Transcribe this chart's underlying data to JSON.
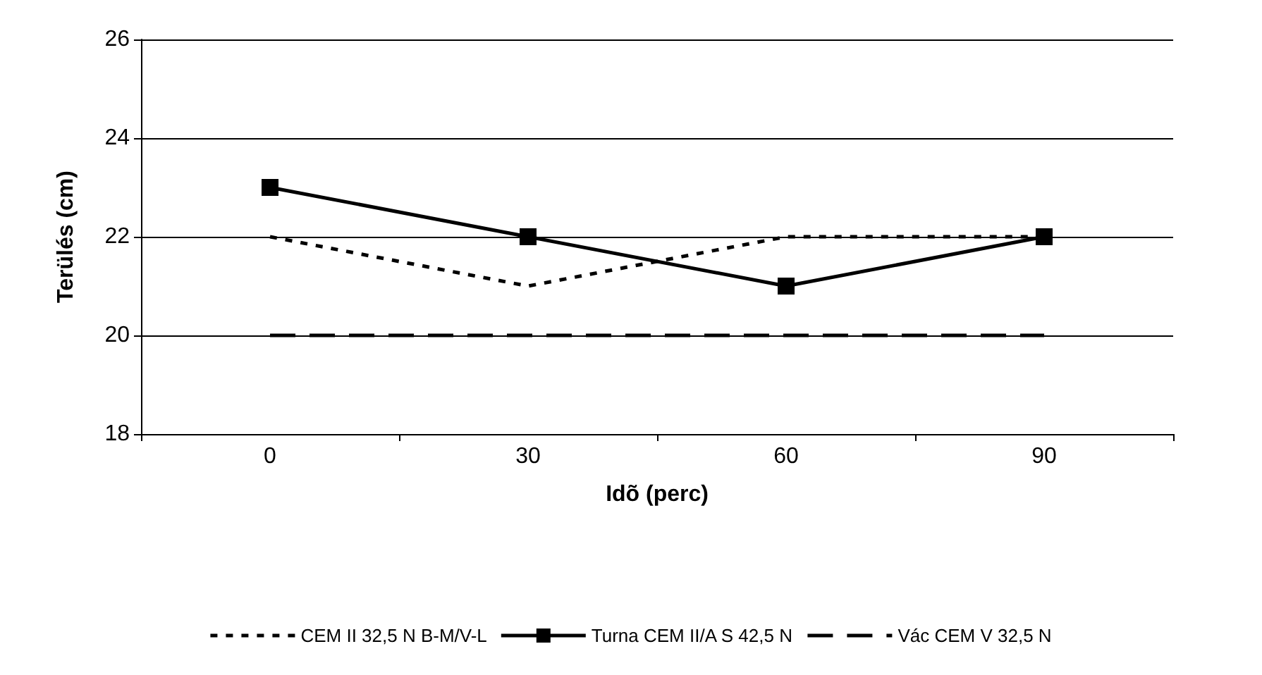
{
  "chart_data": {
    "type": "line",
    "xlabel": "Idõ (perc)",
    "ylabel": "Terülés (cm)",
    "categories": [
      "0",
      "30",
      "60",
      "90"
    ],
    "ylim": [
      18,
      26
    ],
    "yticks": [
      18,
      20,
      22,
      24,
      26
    ],
    "grid": "y",
    "legend": "bottom",
    "series": [
      {
        "name": "CEM II 32,5 N B-M/V-L",
        "color": "#000000",
        "values": [
          22,
          21,
          22,
          22
        ],
        "line_style": "dotted",
        "marker": "none"
      },
      {
        "name": "Turna CEM II/A S 42,5 N",
        "color": "#000000",
        "values": [
          23,
          22,
          21,
          22
        ],
        "line_style": "solid",
        "marker": "square"
      },
      {
        "name": "Vác CEM V 32,5 N",
        "color": "#000000",
        "values": [
          20,
          20,
          20,
          20
        ],
        "line_style": "dashed",
        "marker": "none"
      }
    ]
  }
}
